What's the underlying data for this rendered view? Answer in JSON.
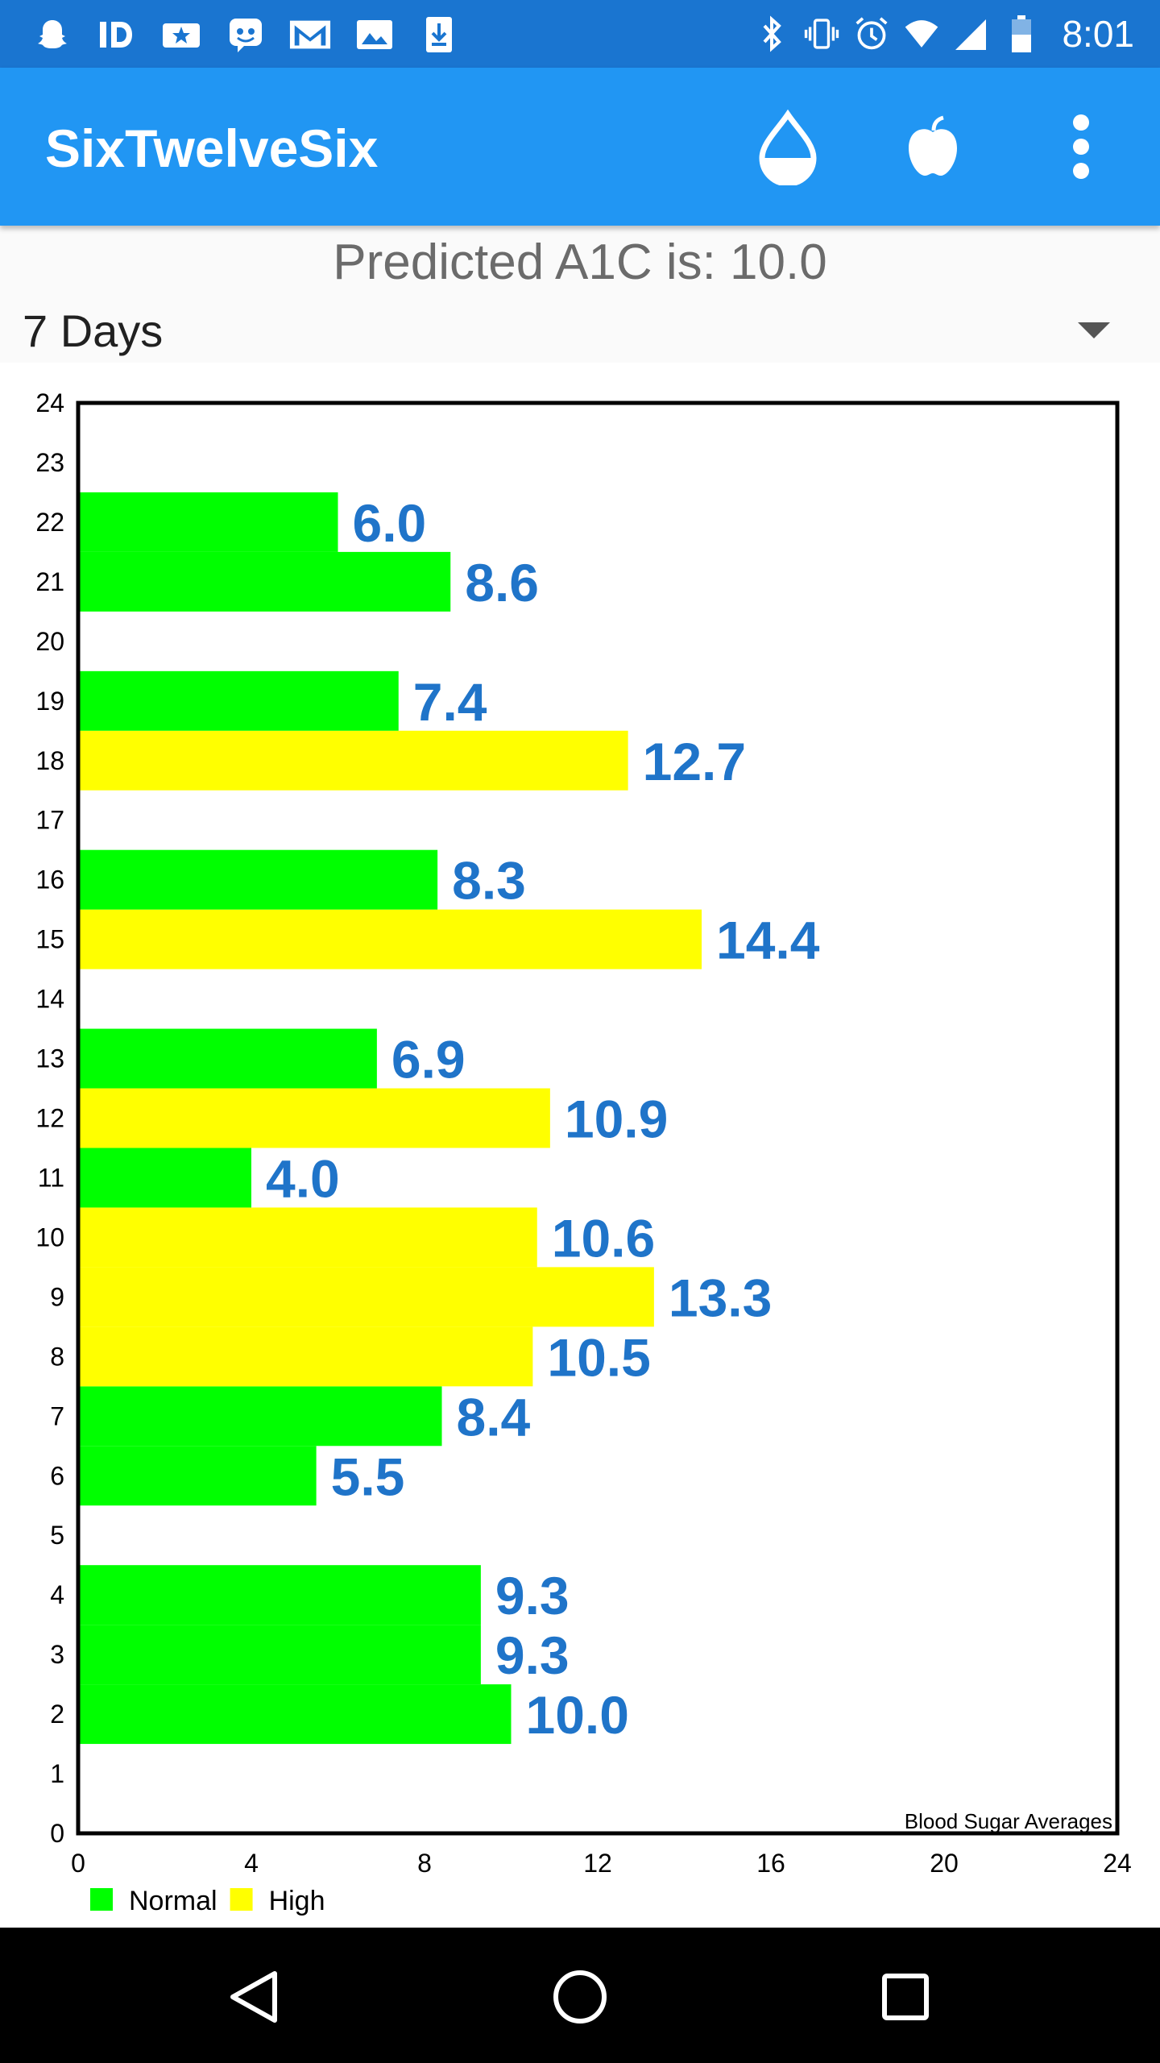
{
  "status_bar": {
    "left_icons": [
      "snapchat-icon",
      "id-icon",
      "star-badge-icon",
      "chat-robot-icon",
      "gmail-icon",
      "image-icon",
      "download-icon"
    ],
    "right_icons": [
      "bluetooth-icon",
      "vibrate-icon",
      "alarm-icon",
      "wifi-icon",
      "signal-icon",
      "battery-icon"
    ],
    "time": "8:01"
  },
  "app_bar": {
    "title": "SixTwelveSix",
    "actions": [
      "blood-drop-icon",
      "apple-icon",
      "more-vert-icon"
    ]
  },
  "predicted_text": "Predicted A1C is: 10.0",
  "range_selector": {
    "selected": "7 Days"
  },
  "chart_data": {
    "type": "bar",
    "orientation": "horizontal",
    "annotation": "Blood Sugar Averages",
    "xlim": [
      0,
      24
    ],
    "ylim": [
      0,
      24
    ],
    "x_ticks": [
      "0",
      "4",
      "8",
      "12",
      "16",
      "20",
      "24"
    ],
    "y_ticks": [
      "0",
      "1",
      "2",
      "3",
      "4",
      "5",
      "6",
      "7",
      "8",
      "9",
      "10",
      "11",
      "12",
      "13",
      "14",
      "15",
      "16",
      "17",
      "18",
      "19",
      "20",
      "21",
      "22",
      "23",
      "24"
    ],
    "categories": [
      2,
      3,
      4,
      6,
      7,
      8,
      9,
      10,
      11,
      12,
      13,
      15,
      16,
      18,
      19,
      21,
      22
    ],
    "values": [
      10.0,
      9.3,
      9.3,
      5.5,
      8.4,
      10.5,
      13.3,
      10.6,
      4.0,
      10.9,
      6.9,
      14.4,
      8.3,
      12.7,
      7.4,
      8.6,
      6.0
    ],
    "value_labels": [
      "10.0",
      "9.3",
      "9.3",
      "5.5",
      "8.4",
      "10.5",
      "13.3",
      "10.6",
      "4.0",
      "10.9",
      "6.9",
      "14.4",
      "8.3",
      "12.7",
      "7.4",
      "8.6",
      "6.0"
    ],
    "status": [
      "Normal",
      "Normal",
      "Normal",
      "Normal",
      "Normal",
      "High",
      "High",
      "High",
      "Normal",
      "High",
      "Normal",
      "High",
      "Normal",
      "High",
      "Normal",
      "Normal",
      "Normal"
    ],
    "legend": [
      {
        "name": "Normal",
        "color": "#00ff00"
      },
      {
        "name": "High",
        "color": "#ffff00"
      }
    ],
    "label_color": "#1f74c9",
    "legend_position": "bottom-left"
  },
  "nav_bar": {
    "buttons": [
      "back-icon",
      "home-icon",
      "recents-icon"
    ]
  }
}
